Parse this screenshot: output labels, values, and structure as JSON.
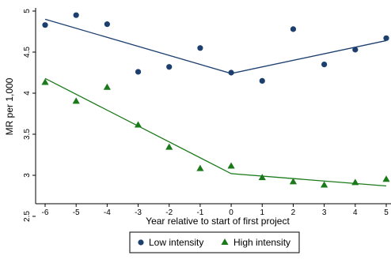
{
  "chart_data": {
    "type": "scatter",
    "title": "",
    "xlabel": "Year relative to start of first project",
    "ylabel": "MR per 1,000",
    "xlim": [
      -6,
      5
    ],
    "ylim": [
      2.5,
      5
    ],
    "xticks": [
      "-6",
      "-5",
      "-4",
      "-3",
      "-2",
      "-1",
      "0",
      "1",
      "2",
      "3",
      "4",
      "5"
    ],
    "yticks": [
      "2.5",
      "3",
      "3.5",
      "4",
      "4.5",
      "5"
    ],
    "grid": false,
    "legend_position": "bottom",
    "series": [
      {
        "name": "Low intensity",
        "marker": "circle",
        "color": "#1c3f6e",
        "x": [
          -6,
          -5,
          -4,
          -3,
          -2,
          -1,
          0,
          1,
          2,
          3,
          4,
          5
        ],
        "y": [
          4.83,
          4.95,
          4.84,
          4.26,
          4.32,
          4.55,
          4.25,
          4.15,
          4.78,
          4.35,
          4.53,
          4.67
        ],
        "fit_line": {
          "x": [
            -6,
            0,
            5
          ],
          "y": [
            4.9,
            4.24,
            4.64
          ]
        }
      },
      {
        "name": "High intensity",
        "marker": "triangle",
        "color": "#1a7a1a",
        "x": [
          -6,
          -5,
          -4,
          -3,
          -2,
          -1,
          0,
          1,
          2,
          3,
          4,
          5
        ],
        "y": [
          4.13,
          3.9,
          4.07,
          3.61,
          3.34,
          3.08,
          3.11,
          2.97,
          2.92,
          2.88,
          2.91,
          2.95
        ],
        "fit_line": {
          "x": [
            -6,
            0,
            5
          ],
          "y": [
            4.18,
            3.02,
            2.87
          ]
        }
      }
    ]
  }
}
